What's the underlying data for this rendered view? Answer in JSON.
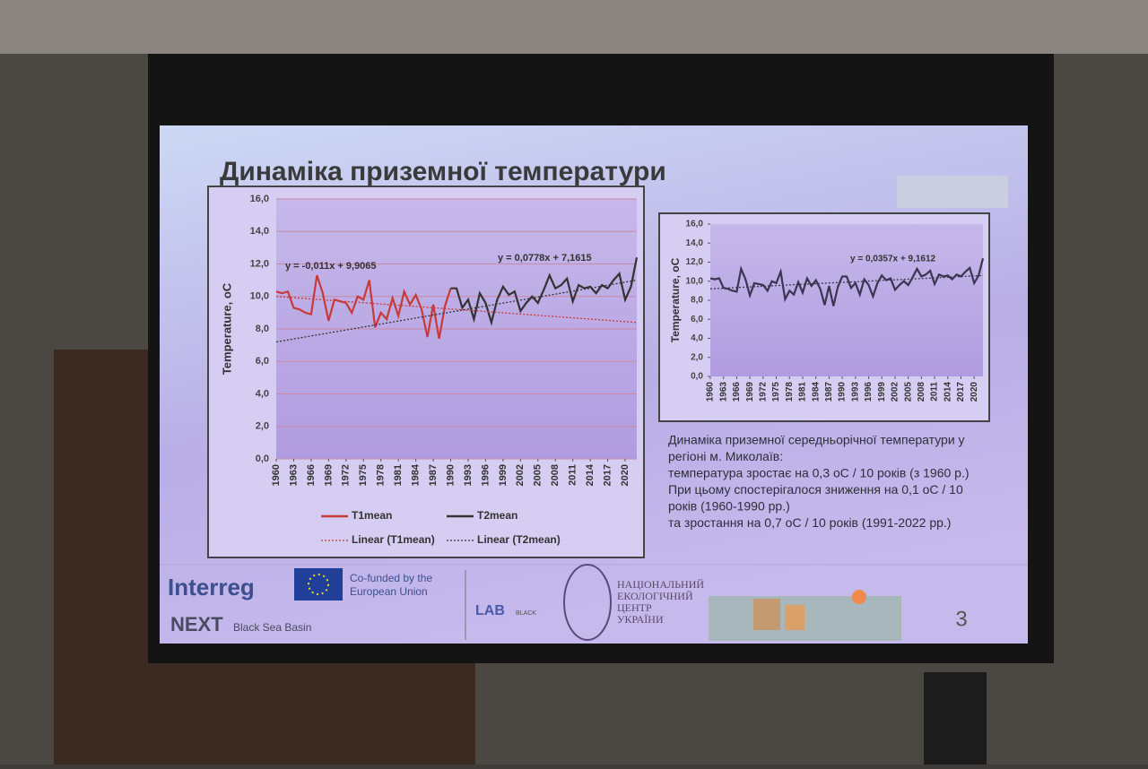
{
  "slide": {
    "title": "Динаміка приземної температури",
    "description": [
      "Динаміка приземної середньорічної температури у",
      "регіоні м. Миколаїв:",
      "температура зростає на 0,3 оС / 10 років (з 1960 р.)",
      "При цьому спостерігалося зниження на 0,1 оС / 10",
      "років (1960-1990 рр.)",
      "та зростання на 0,7 оС / 10 років (1991-2022 рр.)"
    ],
    "logos": {
      "interreg": "Interreg",
      "eu": "Co-funded by the",
      "eu2": "European Union",
      "next": "NEXT",
      "basin": "Black Sea Basin",
      "lab": "LAB",
      "lab2": "BLACK",
      "centre": [
        "НАЦІОНАЛЬНИЙ",
        "ЕКОЛОГІЧНИЙ",
        "ЦЕНТР",
        "УКРАЇНИ"
      ]
    },
    "page_number": "3"
  },
  "chart_data": [
    {
      "type": "line",
      "y_label": "Temperature, oC",
      "annotations": [
        "y = -0,011x + 9,9065",
        "y = 0,0778x + 7,1615"
      ],
      "xlim": [
        1960,
        2022
      ],
      "xticks": [
        1960,
        1963,
        1966,
        1969,
        1972,
        1975,
        1978,
        1981,
        1984,
        1987,
        1990,
        1993,
        1996,
        1999,
        2002,
        2005,
        2008,
        2011,
        2014,
        2017,
        2020
      ],
      "ylim": [
        0,
        16
      ],
      "yticks": [
        {
          "value": 0,
          "label": "0,0"
        },
        {
          "value": 2,
          "label": "2,0"
        },
        {
          "value": 4,
          "label": "4,0"
        },
        {
          "value": 6,
          "label": "6,0"
        },
        {
          "value": 8,
          "label": "8,0"
        },
        {
          "value": 10,
          "label": "10,0"
        },
        {
          "value": 12,
          "label": "12,0"
        },
        {
          "value": 14,
          "label": "14,0"
        },
        {
          "value": 16,
          "label": "16,0"
        }
      ],
      "grid": true,
      "x": [
        1960,
        1961,
        1962,
        1963,
        1964,
        1965,
        1966,
        1967,
        1968,
        1969,
        1970,
        1971,
        1972,
        1973,
        1974,
        1975,
        1976,
        1977,
        1978,
        1979,
        1980,
        1981,
        1982,
        1983,
        1984,
        1985,
        1986,
        1987,
        1988,
        1989,
        1990,
        1991,
        1992,
        1993,
        1994,
        1995,
        1996,
        1997,
        1998,
        1999,
        2000,
        2001,
        2002,
        2003,
        2004,
        2005,
        2006,
        2007,
        2008,
        2009,
        2010,
        2011,
        2012,
        2013,
        2014,
        2015,
        2016,
        2017,
        2018,
        2019,
        2020,
        2021,
        2022
      ],
      "series": [
        {
          "name": "T1mean",
          "color": "#c83a3a",
          "values": [
            10.3,
            10.2,
            10.3,
            9.3,
            9.2,
            9.0,
            8.9,
            11.3,
            10.2,
            8.5,
            9.8,
            9.7,
            9.6,
            9.0,
            10.0,
            9.8,
            11.0,
            8.1,
            9.0,
            8.6,
            9.9,
            8.8,
            10.3,
            9.5,
            10.1,
            9.2,
            7.5,
            9.5,
            7.4,
            9.4,
            10.5,
            null,
            null,
            null,
            null,
            null,
            null,
            null,
            null,
            null,
            null,
            null,
            null,
            null,
            null,
            null,
            null,
            null,
            null,
            null,
            null,
            null,
            null,
            null,
            null,
            null,
            null,
            null,
            null,
            null,
            null,
            null,
            null
          ]
        },
        {
          "name": "T2mean",
          "color": "#333333",
          "values": [
            null,
            null,
            null,
            null,
            null,
            null,
            null,
            null,
            null,
            null,
            null,
            null,
            null,
            null,
            null,
            null,
            null,
            null,
            null,
            null,
            null,
            null,
            null,
            null,
            null,
            null,
            null,
            null,
            null,
            null,
            10.5,
            10.5,
            9.3,
            9.8,
            8.6,
            10.2,
            9.6,
            8.4,
            9.8,
            10.6,
            10.1,
            10.3,
            9.1,
            9.6,
            10.0,
            9.6,
            10.4,
            11.3,
            10.5,
            10.7,
            11.1,
            9.7,
            10.7,
            10.5,
            10.6,
            10.2,
            10.7,
            10.5,
            11.0,
            11.4,
            9.8,
            10.6,
            12.4
          ]
        }
      ],
      "trendlines": [
        {
          "name": "Linear (T1mean)",
          "color": "#c83a3a",
          "x": [
            1960,
            2022
          ],
          "values": [
            10.0,
            8.4
          ]
        },
        {
          "name": "Linear (T2mean)",
          "color": "#333333",
          "x": [
            1960,
            2022
          ],
          "values": [
            7.2,
            11.0
          ]
        }
      ]
    },
    {
      "type": "line",
      "y_label": "Temperature, oC",
      "annotations": [
        "y = 0,0357x + 9,1612"
      ],
      "xlim": [
        1960,
        2022
      ],
      "xticks": [
        1960,
        1963,
        1966,
        1969,
        1972,
        1975,
        1978,
        1981,
        1984,
        1987,
        1990,
        1993,
        1996,
        1999,
        2002,
        2005,
        2008,
        2011,
        2014,
        2017,
        2020
      ],
      "ylim": [
        0,
        16
      ],
      "yticks": [
        {
          "value": 0,
          "label": "0,0"
        },
        {
          "value": 2,
          "label": "2,0"
        },
        {
          "value": 4,
          "label": "4,0"
        },
        {
          "value": 6,
          "label": "6,0"
        },
        {
          "value": 8,
          "label": "8,0"
        },
        {
          "value": 10,
          "label": "10,0"
        },
        {
          "value": 12,
          "label": "12,0"
        },
        {
          "value": 14,
          "label": "14,0"
        },
        {
          "value": 16,
          "label": "16,0"
        }
      ],
      "grid": false,
      "x": [
        1960,
        1961,
        1962,
        1963,
        1964,
        1965,
        1966,
        1967,
        1968,
        1969,
        1970,
        1971,
        1972,
        1973,
        1974,
        1975,
        1976,
        1977,
        1978,
        1979,
        1980,
        1981,
        1982,
        1983,
        1984,
        1985,
        1986,
        1987,
        1988,
        1989,
        1990,
        1991,
        1992,
        1993,
        1994,
        1995,
        1996,
        1997,
        1998,
        1999,
        2000,
        2001,
        2002,
        2003,
        2004,
        2005,
        2006,
        2007,
        2008,
        2009,
        2010,
        2011,
        2012,
        2013,
        2014,
        2015,
        2016,
        2017,
        2018,
        2019,
        2020,
        2021,
        2022
      ],
      "series": [
        {
          "color": "#3a3550",
          "values": [
            10.3,
            10.2,
            10.3,
            9.3,
            9.2,
            9.0,
            8.9,
            11.3,
            10.2,
            8.5,
            9.8,
            9.7,
            9.6,
            9.0,
            10.0,
            9.8,
            11.0,
            8.1,
            9.0,
            8.6,
            9.9,
            8.8,
            10.3,
            9.5,
            10.1,
            9.2,
            7.5,
            9.5,
            7.4,
            9.4,
            10.5,
            10.5,
            9.3,
            9.8,
            8.6,
            10.2,
            9.6,
            8.4,
            9.8,
            10.6,
            10.1,
            10.3,
            9.1,
            9.6,
            10.0,
            9.6,
            10.4,
            11.3,
            10.5,
            10.7,
            11.1,
            9.7,
            10.7,
            10.5,
            10.6,
            10.2,
            10.7,
            10.5,
            11.0,
            11.4,
            9.8,
            10.6,
            12.4
          ]
        }
      ],
      "trendlines": [
        {
          "color": "#3a3550",
          "x": [
            1960,
            2022
          ],
          "values": [
            9.2,
            10.6
          ]
        }
      ]
    }
  ]
}
